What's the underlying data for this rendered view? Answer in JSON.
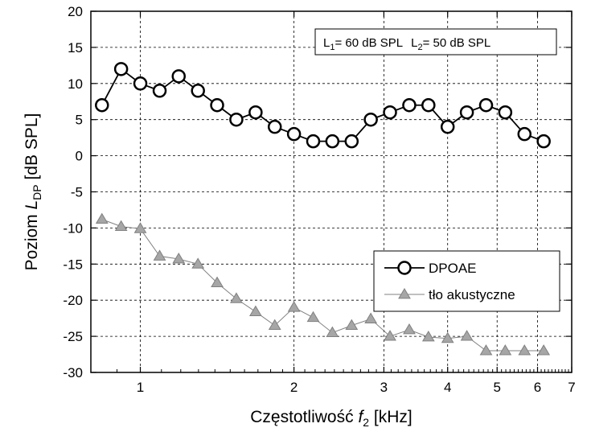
{
  "chart_data": {
    "type": "line",
    "x_scale": "log",
    "xlim": [
      0.8,
      7
    ],
    "ylim": [
      -30,
      20
    ],
    "xlabel": {
      "pre": "Częstotliwość ",
      "var": "f",
      "sub": "2",
      "post": " [kHz]"
    },
    "ylabel": {
      "pre": "Poziom ",
      "var": "L",
      "sub": "DP",
      "post": " [dB SPL]"
    },
    "x_ticks": [
      1,
      2,
      3,
      4,
      5,
      6,
      7
    ],
    "x_tick_labels": [
      "1",
      "2",
      "3",
      "4",
      "5",
      "6",
      "7"
    ],
    "y_ticks": [
      -30,
      -25,
      -20,
      -15,
      -10,
      -5,
      0,
      5,
      10,
      15,
      20
    ],
    "y_tick_labels": [
      "-30",
      "-25",
      "-20",
      "-15",
      "-10",
      "-5",
      "0",
      "5",
      "10",
      "15",
      "20"
    ],
    "grid": "dashed",
    "annotation": {
      "l1": "L",
      "l1_sub": "1",
      "l1_val": "= 60 dB SPL",
      "l2": "L",
      "l2_sub": "2",
      "l2_val": "= 50 dB SPL"
    },
    "legend": {
      "position": "lower-right"
    },
    "series": [
      {
        "name": "DPOAE",
        "marker": "circle",
        "color": "#000000",
        "x": [
          0.841,
          0.917,
          1.0,
          1.091,
          1.189,
          1.297,
          1.414,
          1.542,
          1.682,
          1.834,
          2.0,
          2.181,
          2.378,
          2.594,
          2.828,
          3.084,
          3.364,
          3.668,
          4.0,
          4.362,
          4.757,
          5.187,
          5.657,
          6.169
        ],
        "y": [
          7,
          12,
          10,
          9,
          11,
          9,
          7,
          5,
          6,
          4,
          3,
          2,
          2,
          2,
          5,
          6,
          7,
          7,
          4,
          6,
          7,
          6,
          3,
          2
        ]
      },
      {
        "name": "tło akustyczne",
        "marker": "triangle",
        "color": "#808080",
        "x": [
          0.841,
          0.917,
          1.0,
          1.091,
          1.189,
          1.297,
          1.414,
          1.542,
          1.682,
          1.834,
          2.0,
          2.181,
          2.378,
          2.594,
          2.828,
          3.084,
          3.364,
          3.668,
          4.0,
          4.362,
          4.757,
          5.187,
          5.657,
          6.169
        ],
        "y": [
          -8.8,
          -9.8,
          -10.1,
          -13.9,
          -14.3,
          -15,
          -17.6,
          -19.8,
          -21.6,
          -23.5,
          -21,
          -22.4,
          -24.5,
          -23.5,
          -22.6,
          -25,
          -24.1,
          -25.1,
          -25.3,
          -25,
          -27,
          -27,
          -27,
          -27
        ]
      }
    ]
  }
}
